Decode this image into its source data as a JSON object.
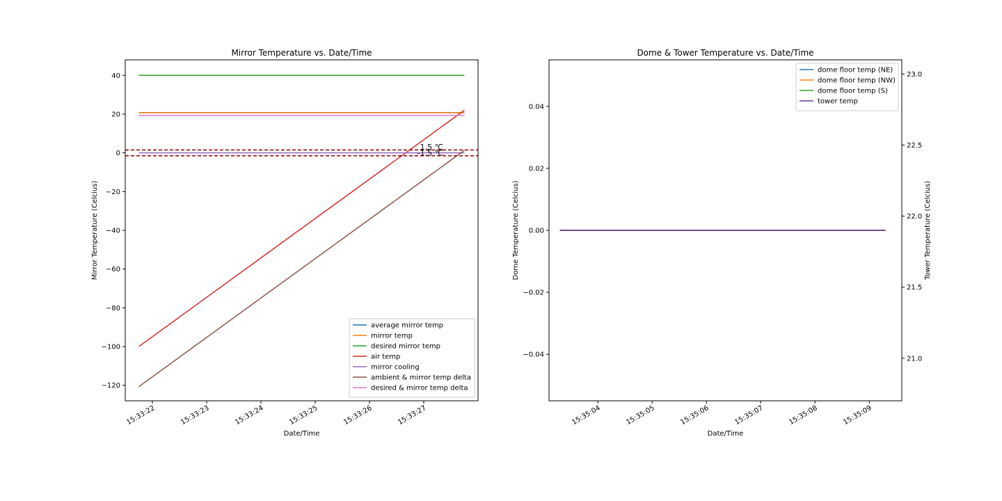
{
  "chart_data": [
    {
      "type": "line",
      "title": "Mirror Temperature vs. Date/Time",
      "xlabel": "Date/Time",
      "ylabel": "Mirror Temperature (Celcius)",
      "xlim": [
        "15:33:21.5",
        "15:33:28.0"
      ],
      "ylim": [
        -128,
        48
      ],
      "x_ticks": [
        "15:33:22",
        "15:33:23",
        "15:33:24",
        "15:33:25",
        "15:33:26",
        "15:33:27"
      ],
      "y_ticks": [
        40,
        20,
        0,
        -20,
        -40,
        -60,
        -80,
        -100,
        -120
      ],
      "grid": false,
      "legend_position": "lower right",
      "series": [
        {
          "name": "average mirror temp",
          "color": "#1f77b4",
          "x": [
            "15:33:21.75",
            "15:33:27.75"
          ],
          "y": [
            20.7,
            20.7
          ]
        },
        {
          "name": "mirror temp",
          "color": "#ff7f0e",
          "x": [
            "15:33:21.75",
            "15:33:27.75"
          ],
          "y": [
            20.7,
            20.7
          ]
        },
        {
          "name": "desired mirror temp",
          "color": "#2ca02c",
          "x": [
            "15:33:21.75",
            "15:33:27.75"
          ],
          "y": [
            40,
            40
          ]
        },
        {
          "name": "air temp",
          "color": "#d62728",
          "x": [
            "15:33:21.75",
            "15:33:27.75"
          ],
          "y": [
            -100,
            22
          ]
        },
        {
          "name": "mirror cooling",
          "color": "#9467bd",
          "x": [
            "15:33:21.75",
            "15:33:27.75"
          ],
          "y": [
            0,
            0
          ]
        },
        {
          "name": "ambient & mirror temp delta",
          "color": "#8c564b",
          "x": [
            "15:33:21.75",
            "15:33:27.75"
          ],
          "y": [
            -120.7,
            1.3
          ]
        },
        {
          "name": "desired & mirror temp delta",
          "color": "#e377c2",
          "x": [
            "15:33:21.75",
            "15:33:27.75"
          ],
          "y": [
            19.3,
            19.3
          ]
        }
      ],
      "hlines": [
        {
          "y": 1.5,
          "label": "1.5 ℃",
          "color": "#8b0000",
          "style": "dashed"
        },
        {
          "y": -1.5,
          "label": "-1.5 ℃",
          "color": "#8b0000",
          "style": "dashed"
        }
      ]
    },
    {
      "type": "line",
      "title": "Dome & Tower Temperature vs. Date/Time",
      "xlabel": "Date/Time",
      "ylabel": "Dome Temperature (Celcius)",
      "y2label": "Tower Temperature (Celcius)",
      "xlim": [
        "15:35:03.1",
        "15:35:09.6"
      ],
      "ylim": [
        -0.055,
        0.055
      ],
      "y2lim": [
        20.7,
        23.1
      ],
      "x_ticks": [
        "15:35:04",
        "15:35:05",
        "15:35:06",
        "15:35:07",
        "15:35:08",
        "15:35:09"
      ],
      "y_ticks": [
        0.04,
        0.02,
        0.0,
        -0.02,
        -0.04
      ],
      "y_tick_labels": [
        "0.04",
        "0.02",
        "0.00",
        "−0.02",
        "−0.04"
      ],
      "y2_ticks": [
        23.0,
        22.5,
        22.0,
        21.5,
        21.0
      ],
      "y2_tick_labels": [
        "23.0",
        "22.5",
        "22.0",
        "21.5",
        "21.0"
      ],
      "grid": false,
      "legend_position": "upper right",
      "series": [
        {
          "name": "dome floor temp (NE)",
          "color": "#1f77b4",
          "axis": "left",
          "x": [
            "15:35:03.3",
            "15:35:09.3"
          ],
          "y": [
            0,
            0
          ]
        },
        {
          "name": "dome floor temp (NW)",
          "color": "#ff7f0e",
          "axis": "left",
          "x": [
            "15:35:03.3",
            "15:35:09.3"
          ],
          "y": [
            0,
            0
          ]
        },
        {
          "name": "dome floor temp (S)",
          "color": "#2ca02c",
          "axis": "left",
          "x": [
            "15:35:03.3",
            "15:35:09.3"
          ],
          "y": [
            0,
            0
          ]
        },
        {
          "name": "tower temp",
          "color": "#7030a0",
          "axis": "left",
          "x": [
            "15:35:03.3",
            "15:35:09.3"
          ],
          "y": [
            0,
            0
          ]
        }
      ]
    }
  ]
}
